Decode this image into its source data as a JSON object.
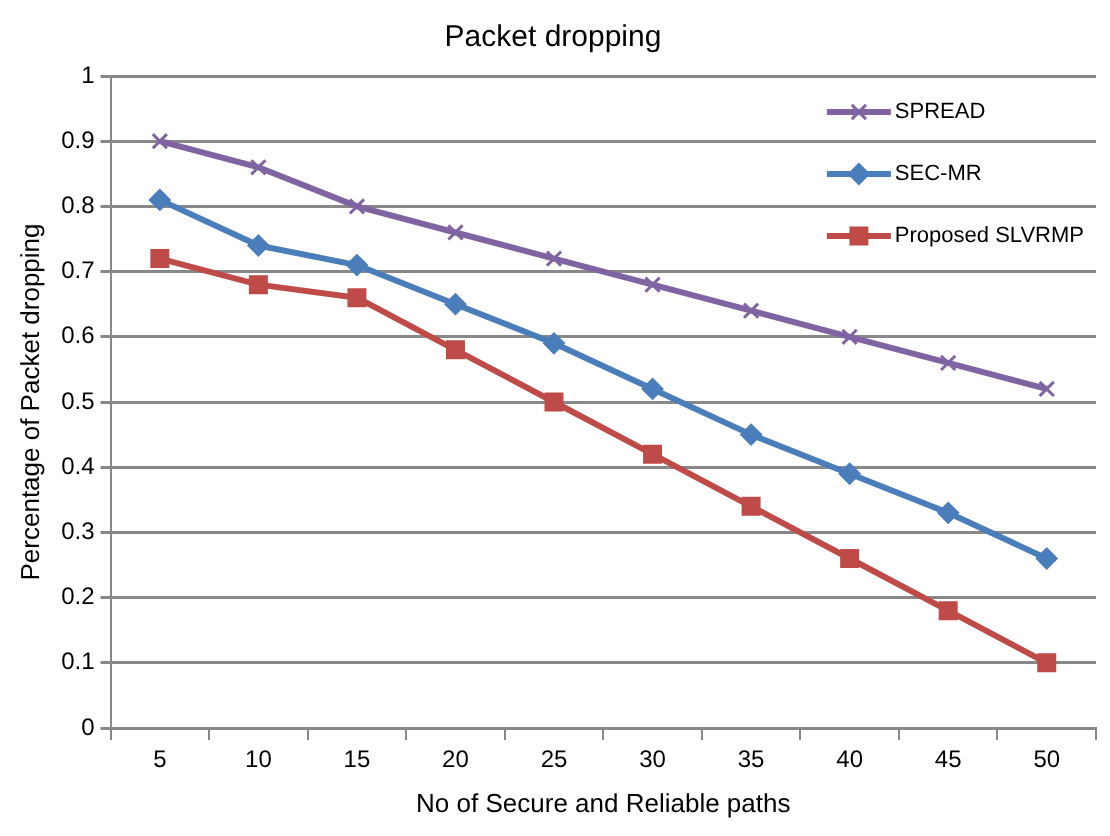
{
  "chart_data": {
    "type": "line",
    "title": "Packet dropping",
    "xlabel": "No of Secure and Reliable paths",
    "ylabel": "Percentage of Packet dropping",
    "categories": [
      "5",
      "10",
      "15",
      "20",
      "25",
      "30",
      "35",
      "40",
      "45",
      "50"
    ],
    "series": [
      {
        "name": "SPREAD",
        "color": "#8064a2",
        "marker": "cross",
        "values": [
          0.9,
          0.86,
          0.8,
          0.76,
          0.72,
          0.68,
          0.64,
          0.6,
          0.56,
          0.52
        ]
      },
      {
        "name": "SEC-MR",
        "color": "#4a7ebb",
        "marker": "diamond",
        "values": [
          0.81,
          0.74,
          0.71,
          0.65,
          0.59,
          0.52,
          0.45,
          0.39,
          0.33,
          0.26
        ]
      },
      {
        "name": "Proposed SLVRMP",
        "color": "#be4b48",
        "marker": "square",
        "values": [
          0.72,
          0.68,
          0.66,
          0.58,
          0.5,
          0.42,
          0.34,
          0.26,
          0.18,
          0.1
        ]
      }
    ],
    "ylim": [
      0,
      1
    ],
    "yticks": [
      0,
      0.1,
      0.2,
      0.3,
      0.4,
      0.5,
      0.6,
      0.7,
      0.8,
      0.9,
      1
    ],
    "grid": "y",
    "legend": "top right",
    "line_style": "solid"
  }
}
